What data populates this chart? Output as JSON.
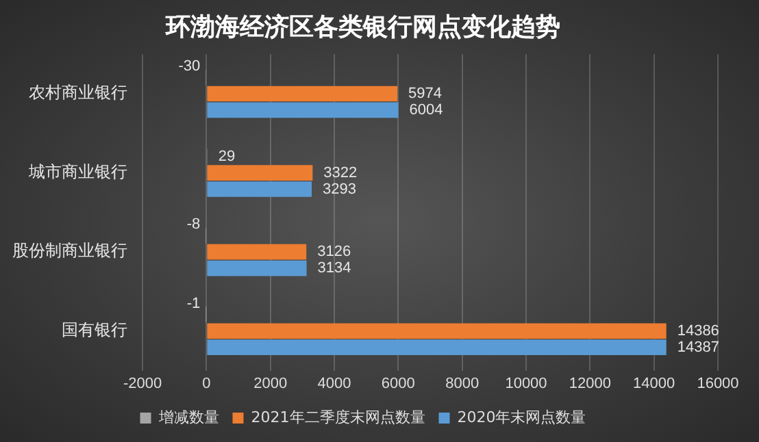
{
  "chart_data": {
    "type": "bar",
    "orientation": "horizontal",
    "title": "环渤海经济区各类银行网点变化趋势",
    "categories": [
      "农村商业银行",
      "城市商业银行",
      "股份制商业银行",
      "国有银行"
    ],
    "series": [
      {
        "name": "增减数量",
        "color": "#a5a5a5",
        "values": [
          -30,
          29,
          -8,
          -1
        ]
      },
      {
        "name": "2021年二季度末网点数量",
        "color": "#ed7d31",
        "values": [
          5974,
          3322,
          3126,
          14386
        ]
      },
      {
        "name": "2020年末网点数量",
        "color": "#5b9bd5",
        "values": [
          6004,
          3293,
          3134,
          14387
        ]
      }
    ],
    "xlim": [
      -2000,
      16000
    ],
    "xticks": [
      -2000,
      0,
      2000,
      4000,
      6000,
      8000,
      10000,
      12000,
      14000,
      16000
    ],
    "grid": "x",
    "legend": "bottom",
    "data_labels": true
  }
}
